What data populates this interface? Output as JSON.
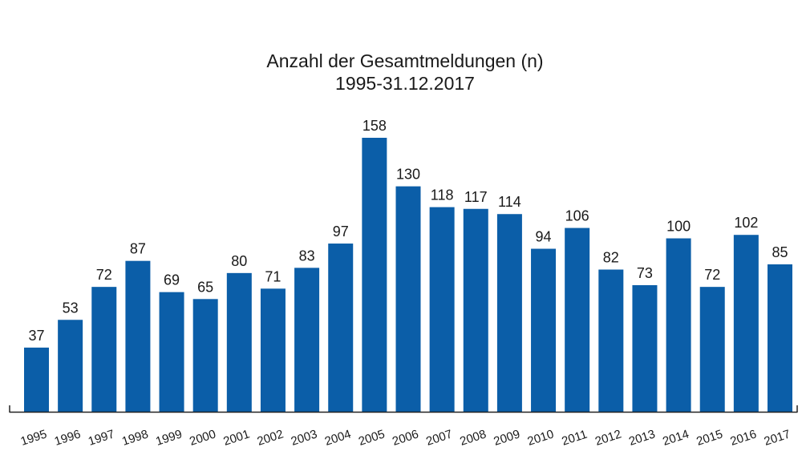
{
  "chart_data": {
    "type": "bar",
    "title": "Anzahl der Gesamtmeldungen (n)",
    "subtitle": "1995-31.12.2017",
    "xlabel": "",
    "ylabel": "",
    "ylim": [
      0,
      158
    ],
    "grid": false,
    "legend": "none",
    "categories": [
      "1995",
      "1996",
      "1997",
      "1998",
      "1999",
      "2000",
      "2001",
      "2002",
      "2003",
      "2004",
      "2005",
      "2006",
      "2007",
      "2008",
      "2009",
      "2010",
      "2011",
      "2012",
      "2013",
      "2014",
      "2015",
      "2016",
      "2017"
    ],
    "values": [
      37,
      53,
      72,
      87,
      69,
      65,
      80,
      71,
      83,
      97,
      158,
      130,
      118,
      117,
      114,
      94,
      106,
      82,
      73,
      100,
      72,
      102,
      85
    ],
    "bar_color": "#0b5ea8",
    "axis_color": "#222222"
  }
}
